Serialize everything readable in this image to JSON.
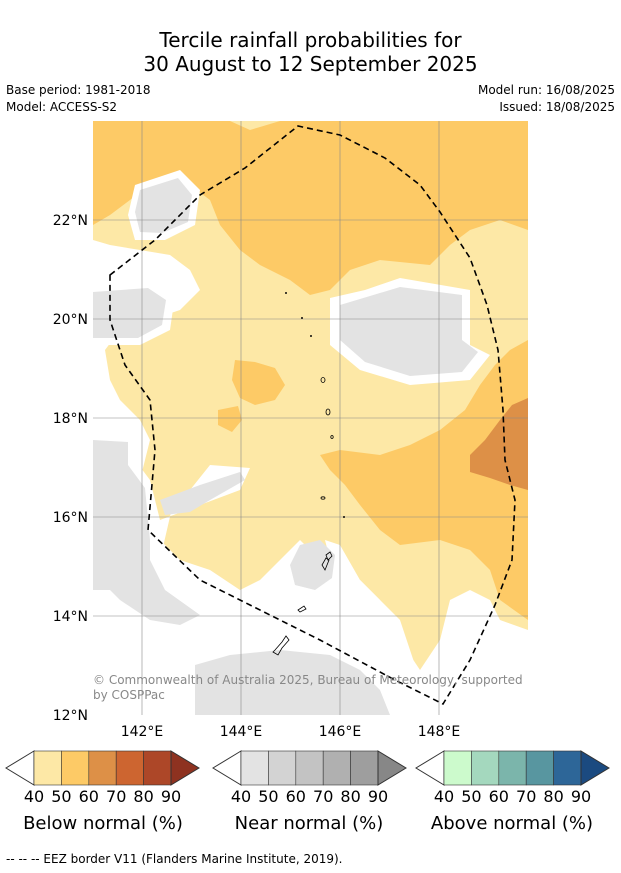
{
  "header": {
    "title_line1": "Tercile rainfall probabilities for",
    "title_line2": "30 August to 12 September 2025",
    "base_period": "Base period: 1981-2018",
    "model": "Model: ACCESS-S2",
    "model_run": "Model run: 16/08/2025",
    "issued": "Issued: 18/08/2025"
  },
  "map": {
    "lat_labels": [
      "22°N",
      "20°N",
      "18°N",
      "16°N",
      "14°N",
      "12°N"
    ],
    "lon_labels": [
      "142°E",
      "144°E",
      "146°E",
      "148°E"
    ],
    "copyright_line1": "© Commonwealth of Australia 2025, Bureau of Meteorology, supported",
    "copyright_line2": "by COSPPac",
    "colors": {
      "below_40": "#fde8a6",
      "below_50": "#fdca66",
      "below_60": "#dd9047",
      "near_40": "#e3e3e3",
      "ocean": "#ffffff"
    }
  },
  "colorbars": [
    {
      "label": "Below normal (%)",
      "ticks": [
        "40",
        "50",
        "60",
        "70",
        "80",
        "90"
      ],
      "colors": [
        "#fde8a6",
        "#fdca66",
        "#dd9047",
        "#cd6530",
        "#ad4728",
        "#8e3220"
      ]
    },
    {
      "label": "Near normal (%)",
      "ticks": [
        "40",
        "50",
        "60",
        "70",
        "80",
        "90"
      ],
      "colors": [
        "#e3e3e3",
        "#d3d3d3",
        "#c3c3c3",
        "#b0b0b0",
        "#9e9e9e",
        "#878787"
      ]
    },
    {
      "label": "Above normal (%)",
      "ticks": [
        "40",
        "50",
        "60",
        "70",
        "80",
        "90"
      ],
      "colors": [
        "#ccfacc",
        "#a4d8be",
        "#7bb5ab",
        "#5896a0",
        "#2d6698",
        "#1b4a80"
      ]
    }
  ],
  "footer": "--  --  -- EEZ border V11 (Flanders Marine Institute, 2019)."
}
